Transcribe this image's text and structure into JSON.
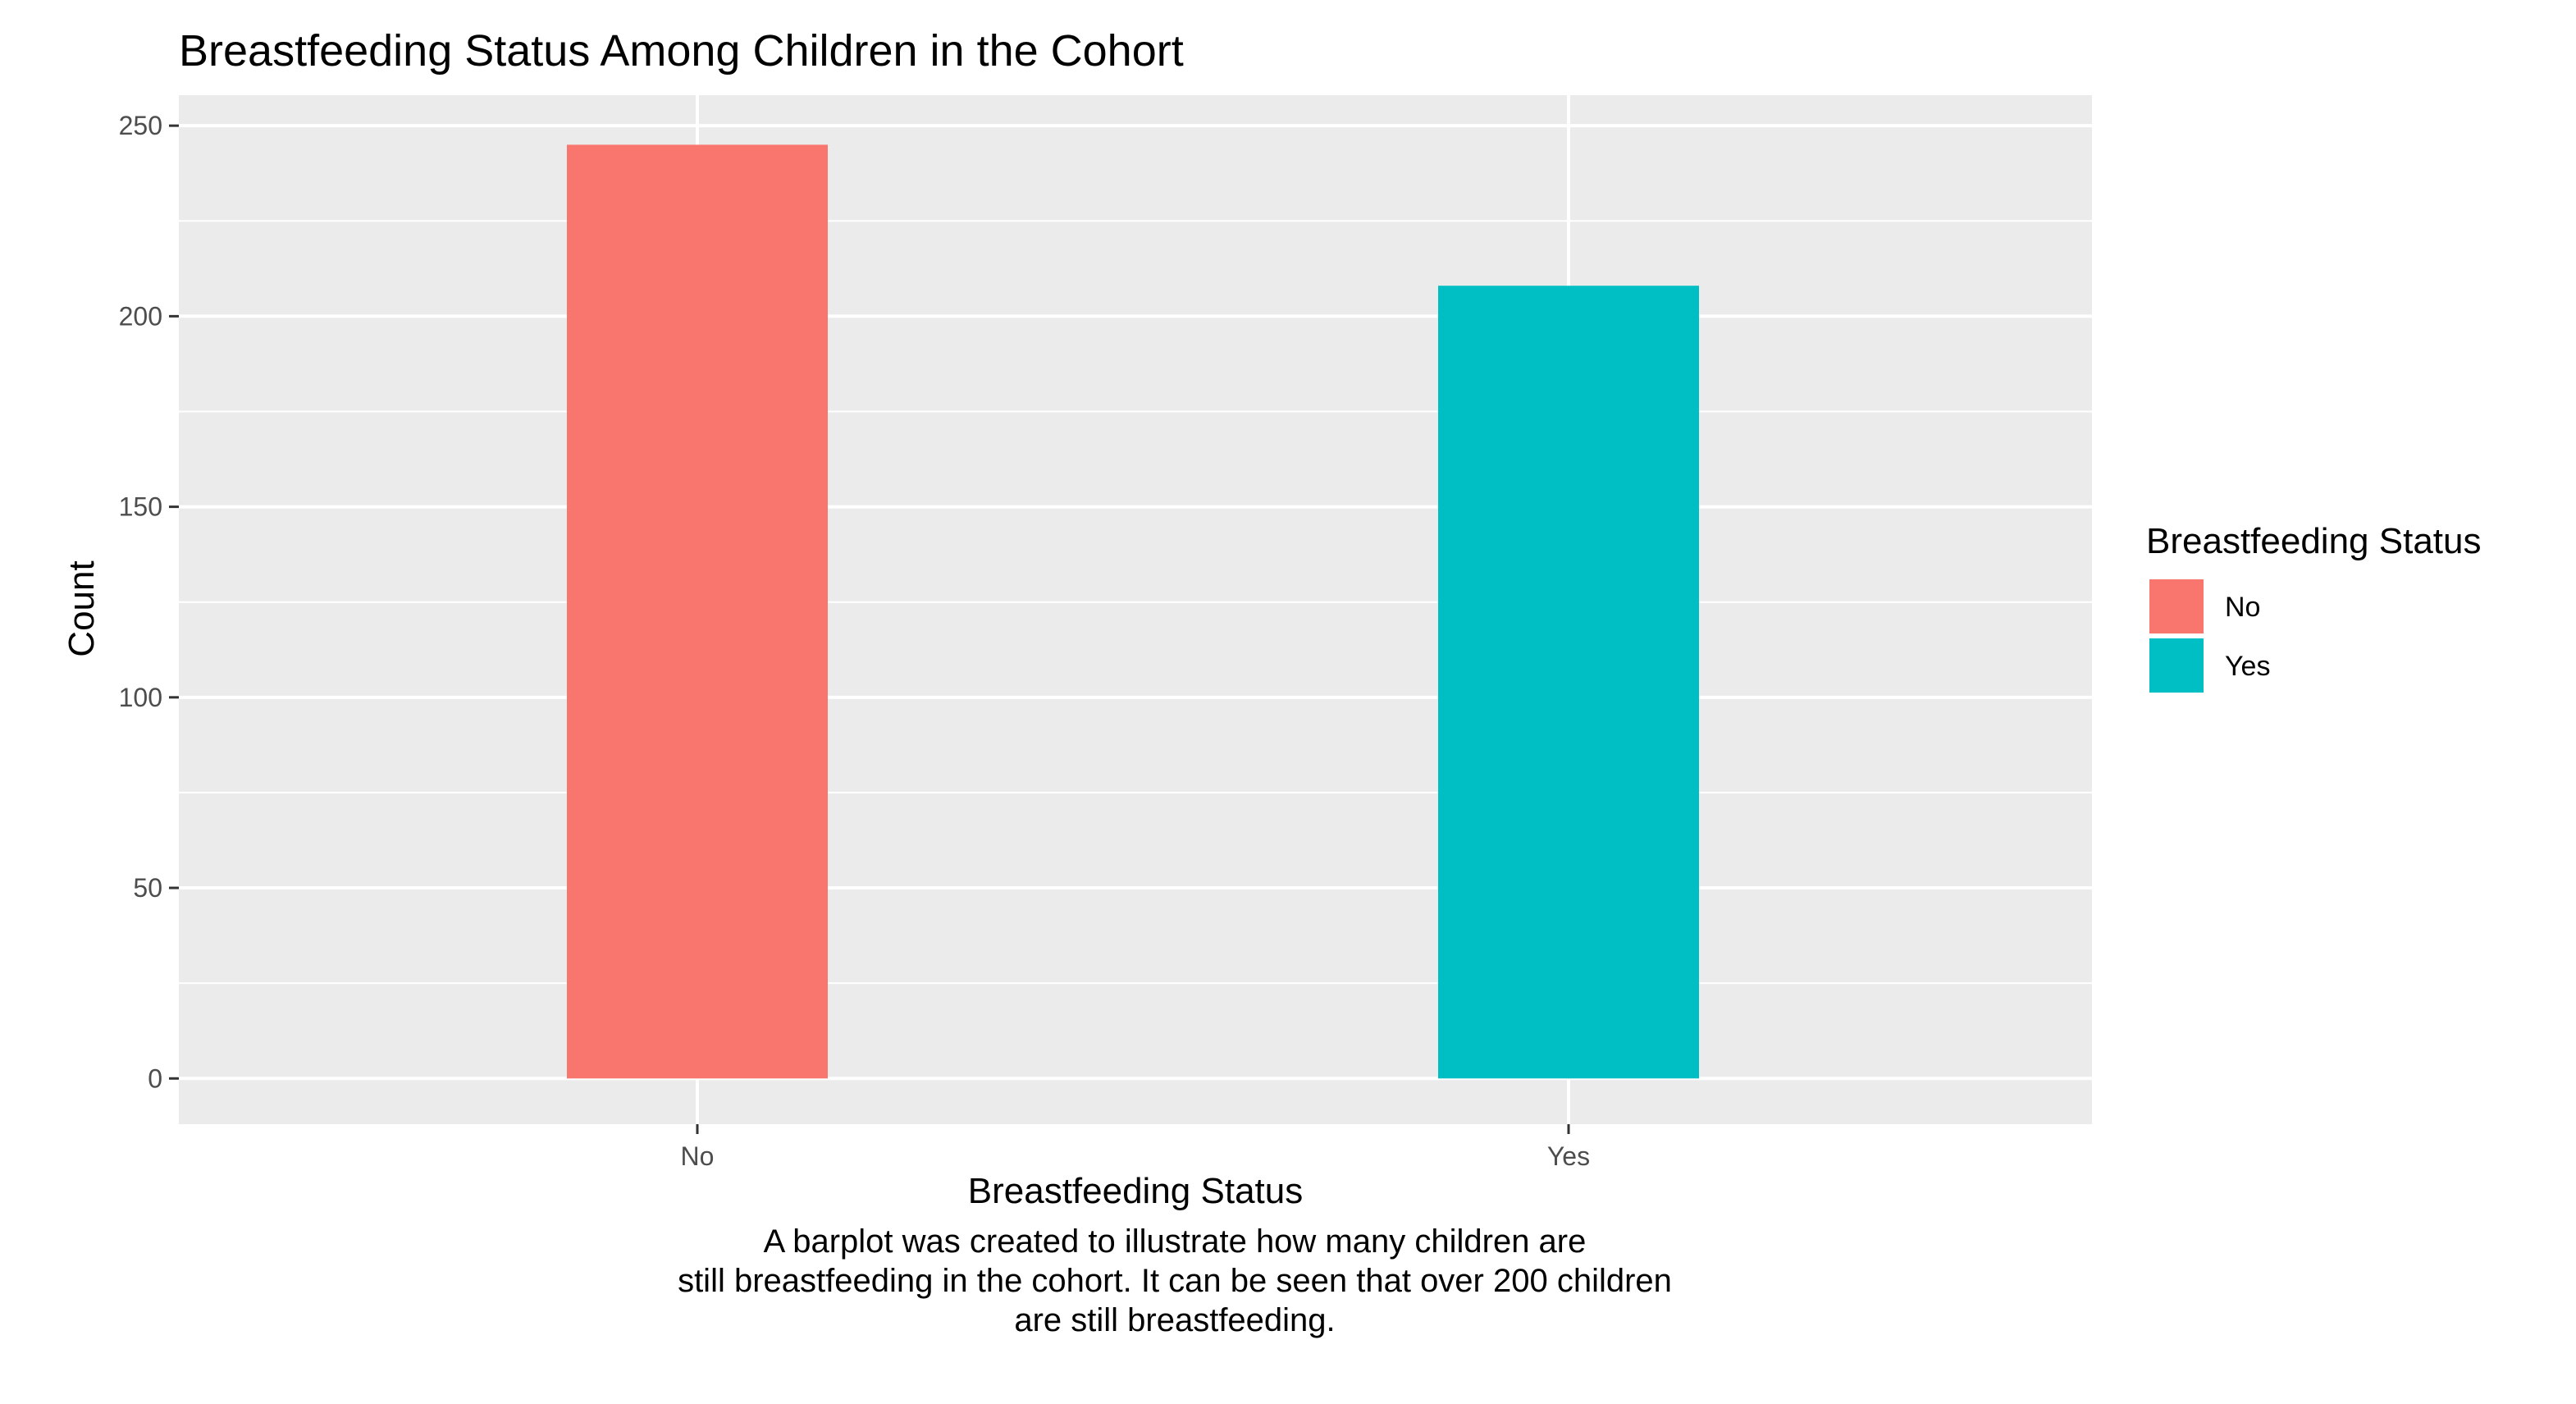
{
  "chart_data": {
    "type": "bar",
    "title": "Breastfeeding Status Among Children in the Cohort",
    "xlabel": "Breastfeeding Status",
    "ylabel": "Count",
    "categories": [
      "No",
      "Yes"
    ],
    "values": [
      245,
      208
    ],
    "colors": [
      "#F8766D",
      "#00BFC4"
    ],
    "ylim": [
      -12,
      258
    ],
    "yticks": [
      0,
      50,
      100,
      150,
      200,
      250
    ],
    "grid": true,
    "panel_background": "#EBEBEB",
    "legend": {
      "title": "Breastfeeding Status",
      "placement": "right",
      "entries": [
        {
          "label": "No",
          "color": "#F8766D"
        },
        {
          "label": "Yes",
          "color": "#00BFC4"
        }
      ]
    },
    "caption_lines": [
      "A barplot was created to illustrate how many children are",
      "still breastfeeding in the cohort. It can be seen that over 200 children",
      "are still breastfeeding."
    ]
  }
}
